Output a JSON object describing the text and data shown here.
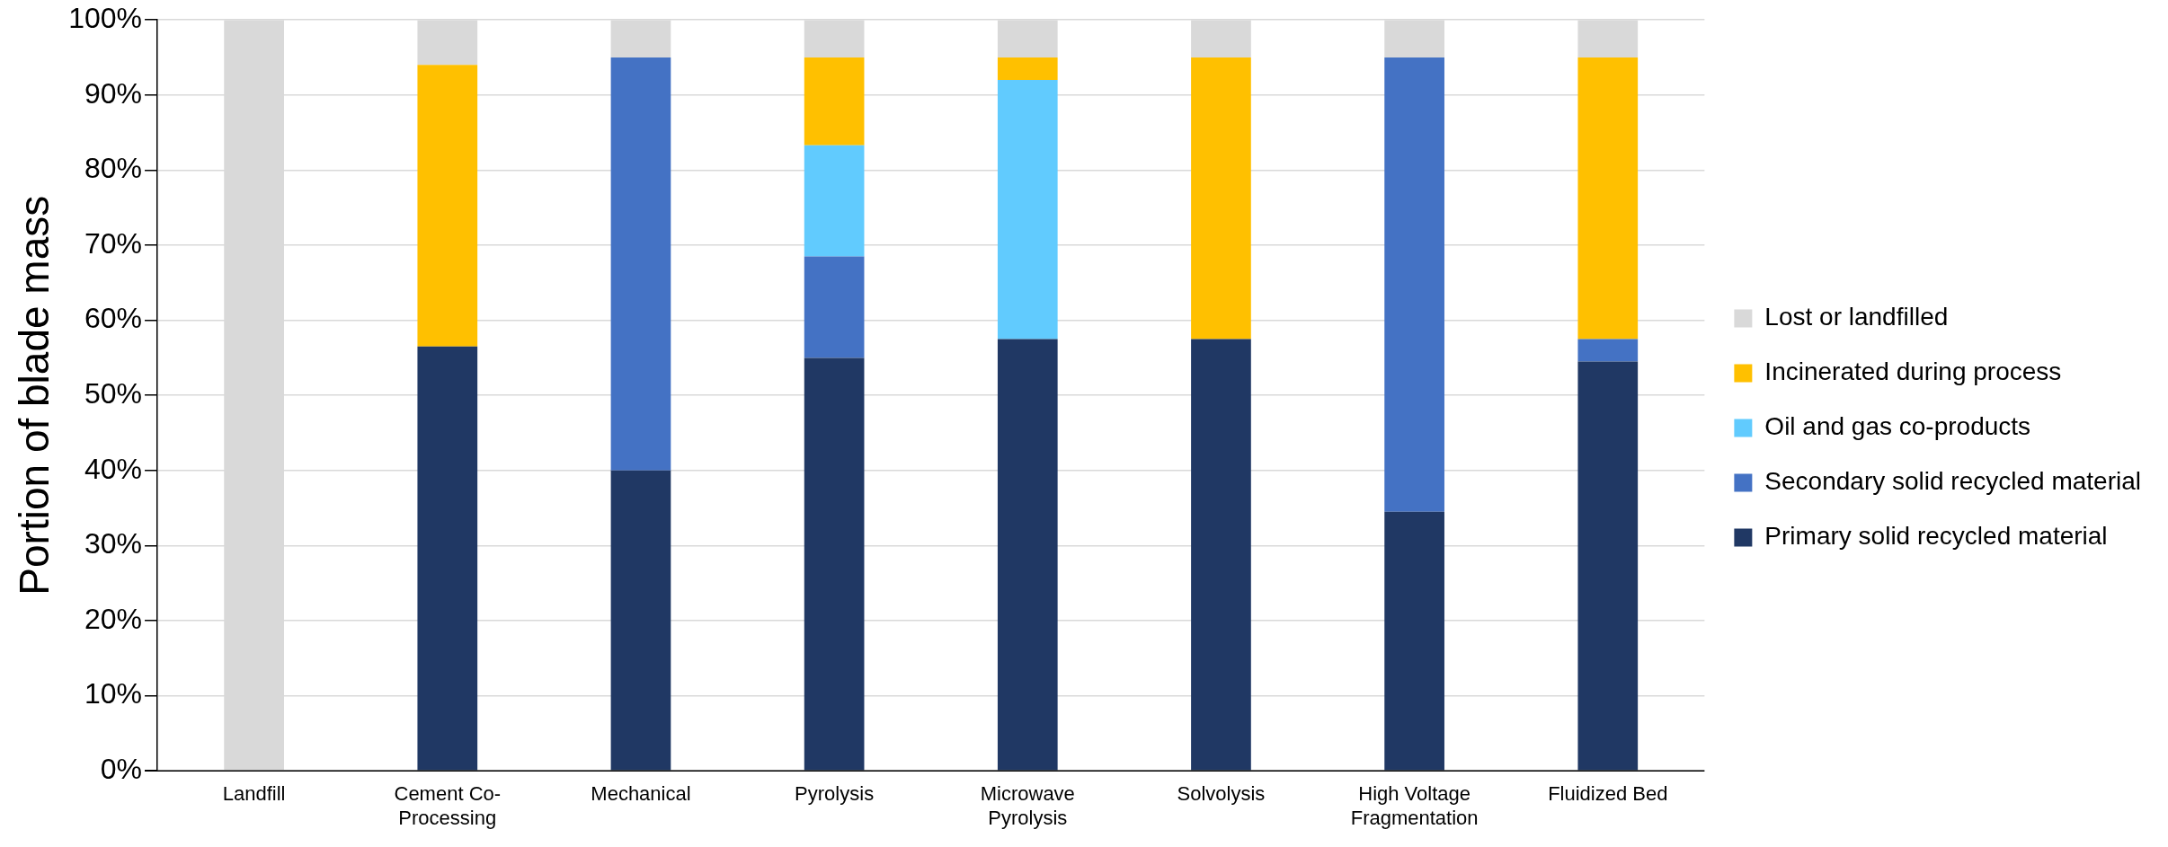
{
  "chart_data": {
    "type": "bar",
    "stacked": true,
    "ylabel": "Portion of blade mass",
    "categories": [
      "Landfill",
      "Cement Co-Processing",
      "Mechanical",
      "Pyrolysis",
      "Microwave Pyrolysis",
      "Solvolysis",
      "High Voltage Fragmentation",
      "Fluidized Bed"
    ],
    "series": [
      {
        "name": "Primary solid recycled material",
        "color": "#203864",
        "values": [
          0,
          56.5,
          40,
          55,
          57.5,
          57.5,
          34.5,
          54.5
        ]
      },
      {
        "name": "Secondary solid recycled material",
        "color": "#4472c4",
        "values": [
          0,
          0,
          55,
          13.5,
          0,
          0,
          60.5,
          3
        ]
      },
      {
        "name": "Oil and gas co-products",
        "color": "#61cbfe",
        "values": [
          0,
          0,
          0,
          14.8,
          34.5,
          0,
          0,
          0
        ]
      },
      {
        "name": "Incinerated during process",
        "color": "#ffc000",
        "values": [
          0,
          37.5,
          0,
          11.7,
          3,
          37.5,
          0,
          37.5
        ]
      },
      {
        "name": "Lost or landfilled",
        "color": "#d9d9d9",
        "values": [
          100,
          6,
          5,
          5,
          5,
          5,
          5,
          5
        ]
      }
    ],
    "ylim": [
      0,
      100
    ],
    "yticks": [
      {
        "value": 0,
        "label": "0%"
      },
      {
        "value": 10,
        "label": "10%"
      },
      {
        "value": 20,
        "label": "20%"
      },
      {
        "value": 30,
        "label": "30%"
      },
      {
        "value": 40,
        "label": "40%"
      },
      {
        "value": 50,
        "label": "50%"
      },
      {
        "value": 60,
        "label": "60%"
      },
      {
        "value": 70,
        "label": "70%"
      },
      {
        "value": 80,
        "label": "80%"
      },
      {
        "value": 90,
        "label": "90%"
      },
      {
        "value": 100,
        "label": "100%"
      }
    ],
    "grid": "y",
    "legend": "right"
  }
}
